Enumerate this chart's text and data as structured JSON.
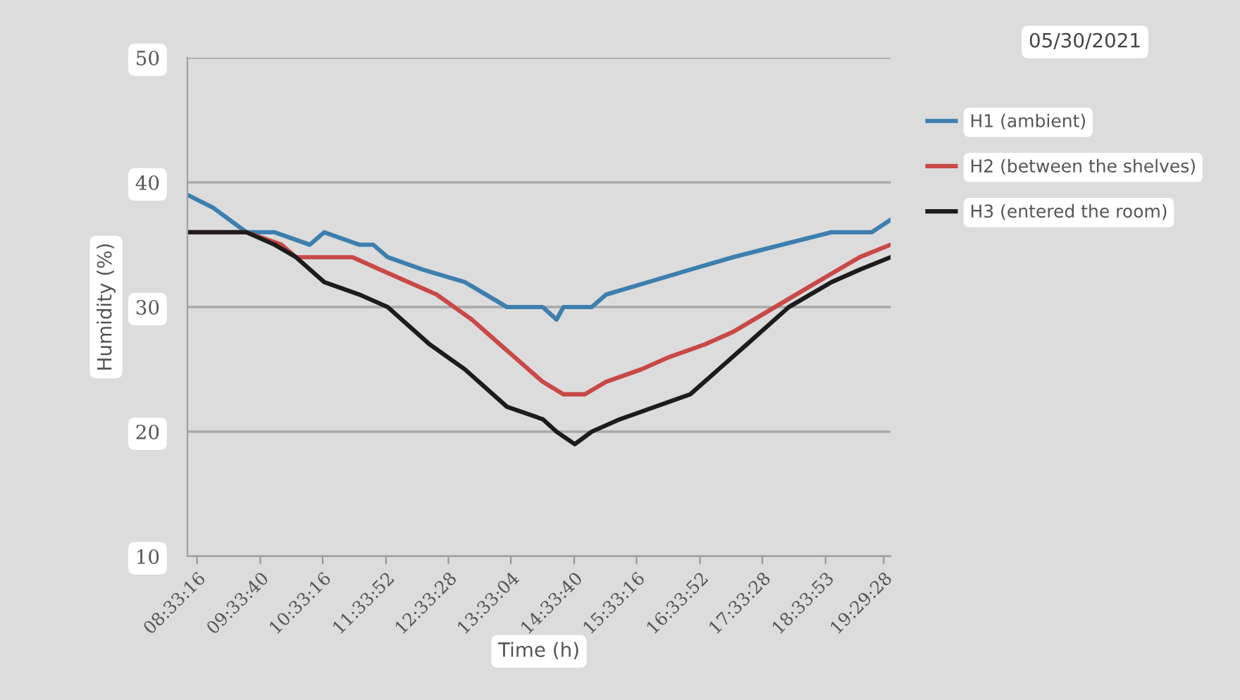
{
  "chart_data": {
    "type": "line",
    "xlabel": "Time (h)",
    "ylabel": "Humidity (%)",
    "annotations": [
      "05/30/2021"
    ],
    "xlim": [
      8.4,
      19.6
    ],
    "xticks": [
      {
        "value": 8.5544,
        "label": "08:33:16"
      },
      {
        "value": 9.5611,
        "label": "09:33:40"
      },
      {
        "value": 10.5544,
        "label": "10:33:16"
      },
      {
        "value": 11.5644,
        "label": "11:33:52"
      },
      {
        "value": 12.5578,
        "label": "12:33:28"
      },
      {
        "value": 13.5511,
        "label": "13:33:04"
      },
      {
        "value": 14.5611,
        "label": "14:33:40"
      },
      {
        "value": 15.5544,
        "label": "15:33:16"
      },
      {
        "value": 16.5644,
        "label": "16:33:52"
      },
      {
        "value": 17.5578,
        "label": "17:33:28"
      },
      {
        "value": 18.5647,
        "label": "18:33:53"
      },
      {
        "value": 19.4911,
        "label": "19:29:28"
      }
    ],
    "ylim": [
      10,
      50
    ],
    "yticks": [
      10,
      20,
      30,
      40,
      50
    ],
    "grid": "y",
    "legend": "right",
    "line_style": "solid",
    "marker": "none",
    "series": [
      {
        "name": "H1 (ambient)",
        "color": "#3d7fae",
        "x": [
          8.4,
          8.8,
          9.34,
          9.79,
          10.35,
          10.58,
          11.14,
          11.36,
          11.59,
          12.15,
          12.82,
          13.49,
          14.06,
          14.28,
          14.39,
          14.84,
          15.07,
          15.74,
          16.41,
          17.09,
          17.87,
          18.66,
          19.3,
          19.6
        ],
        "values": [
          39,
          38,
          36,
          36,
          35,
          36,
          35,
          35,
          34,
          33,
          32,
          30,
          30,
          29,
          30,
          30,
          31,
          32,
          33,
          34,
          35,
          36,
          36,
          37
        ]
      },
      {
        "name": "H2 (between the shelves)",
        "color": "#c94848",
        "x": [
          8.4,
          9.34,
          9.9,
          10.13,
          11.03,
          11.47,
          12.37,
          12.93,
          13.38,
          14.06,
          14.39,
          14.73,
          15.07,
          15.63,
          16.08,
          16.64,
          17.09,
          17.76,
          18.43,
          19.11,
          19.6
        ],
        "values": [
          36,
          36,
          35,
          34,
          34,
          33,
          31,
          29,
          27,
          24,
          23,
          23,
          24,
          25,
          26,
          27,
          28,
          30,
          32,
          34,
          35
        ]
      },
      {
        "name": "H3 (entered the room)",
        "color": "#1c1c1c",
        "x": [
          8.4,
          9.34,
          9.79,
          10.13,
          10.58,
          11.14,
          11.59,
          12.26,
          12.82,
          13.49,
          14.06,
          14.28,
          14.57,
          14.84,
          15.29,
          15.85,
          16.41,
          16.86,
          17.31,
          17.98,
          18.66,
          19.11,
          19.6
        ],
        "values": [
          36,
          36,
          35,
          34,
          32,
          31,
          30,
          27,
          25,
          22,
          21,
          20,
          19,
          20,
          21,
          22,
          23,
          25,
          27,
          30,
          32,
          33,
          34
        ]
      }
    ]
  }
}
